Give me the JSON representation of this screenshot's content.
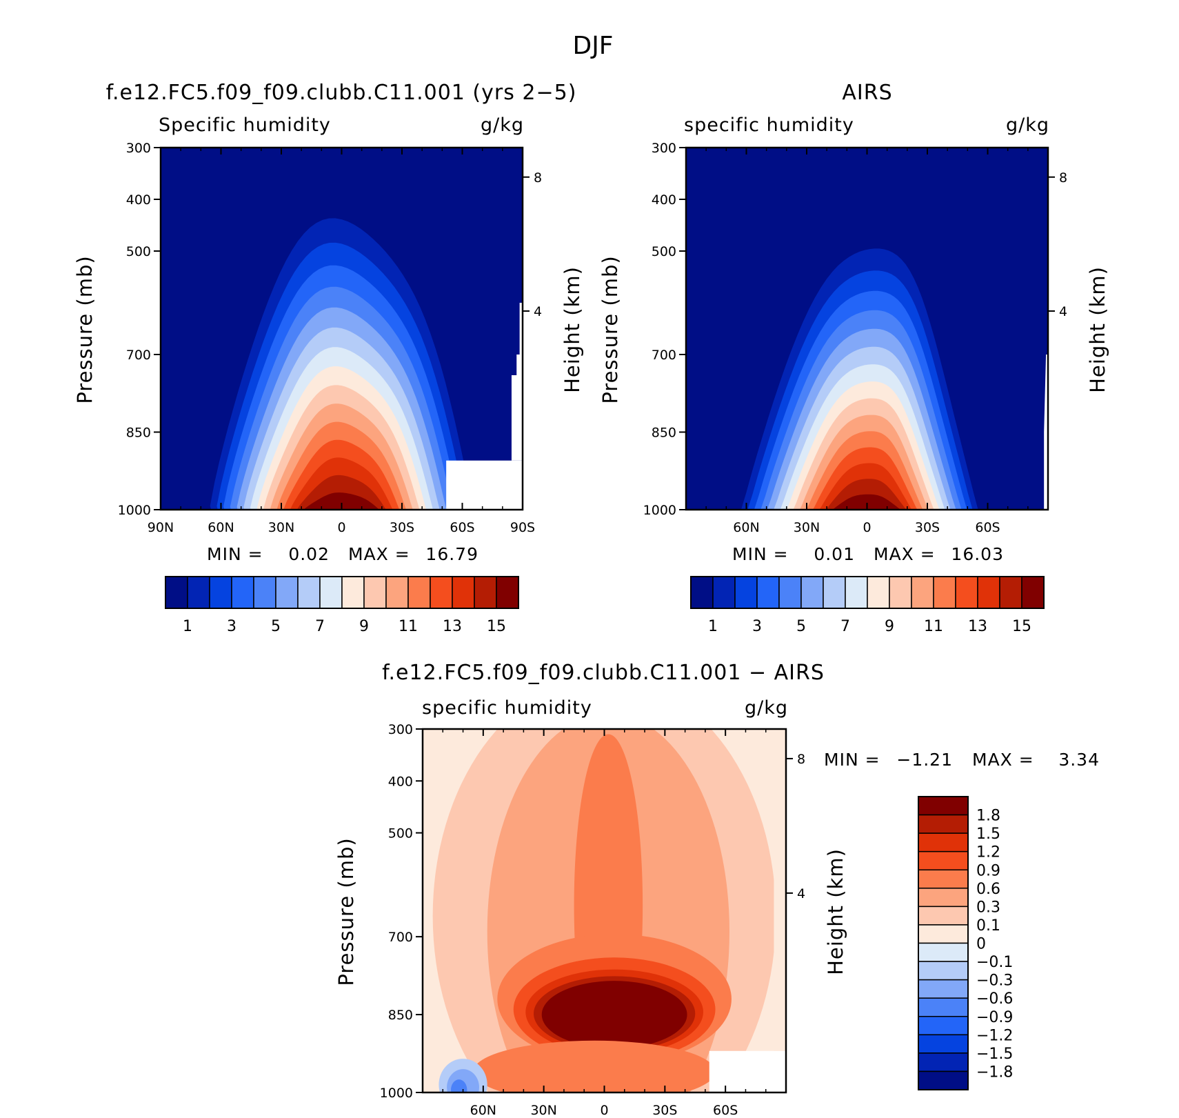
{
  "figure": {
    "title": "DJF"
  },
  "chart_data": [
    {
      "type": "heatmap",
      "title": "f.e12.FC5.f09_f09.clubb.C11.001 (yrs 2-5)",
      "subtitle_left": "Specific humidity",
      "subtitle_right": "g/kg",
      "xlabel": "",
      "ylabel": "Pressure (mb)",
      "y2label": "Height (km)",
      "x_ticks": [
        "90N",
        "60N",
        "30N",
        "0",
        "30S",
        "60S",
        "90S"
      ],
      "y_ticks": [
        "300",
        "400",
        "500",
        "700",
        "850",
        "1000"
      ],
      "y2_ticks": [
        "8",
        "4"
      ],
      "ylim": [
        300,
        1000
      ],
      "xlim": [
        -90,
        90
      ],
      "stats": {
        "min_label": "MIN =",
        "min": "0.02",
        "max_label": "MAX =",
        "max": "16.79"
      },
      "colorbar": {
        "orientation": "horizontal",
        "labels": [
          "1",
          "3",
          "5",
          "7",
          "9",
          "11",
          "13",
          "15"
        ],
        "colors": [
          "#000e86",
          "#0224b4",
          "#0543e0",
          "#2365f8",
          "#4b82f8",
          "#82a8f8",
          "#b4ccf8",
          "#dceaf8",
          "#fdeadc",
          "#fdc8b0",
          "#fca47e",
          "#fb7c4c",
          "#f44e1e",
          "#e03208",
          "#b41d04",
          "#800000"
        ]
      },
      "peak": {
        "lat": 0,
        "pressure": 1000,
        "half_width": 44,
        "top": 380,
        "maxval": 16.79
      }
    },
    {
      "type": "heatmap",
      "title": "AIRS",
      "subtitle_left": "specific humidity",
      "subtitle_right": "g/kg",
      "xlabel": "",
      "ylabel": "Pressure (mb)",
      "y2label": "Height (km)",
      "x_ticks": [
        "60N",
        "30N",
        "0",
        "30S",
        "60S"
      ],
      "y_ticks": [
        "300",
        "400",
        "500",
        "700",
        "850",
        "1000"
      ],
      "y2_ticks": [
        "8",
        "4"
      ],
      "ylim": [
        300,
        1000
      ],
      "xlim": [
        -90,
        90
      ],
      "stats": {
        "min_label": "MIN =",
        "min": "0.01",
        "max_label": "MAX =",
        "max": "16.03"
      },
      "colorbar": {
        "orientation": "horizontal",
        "labels": [
          "1",
          "3",
          "5",
          "7",
          "9",
          "11",
          "13",
          "15"
        ],
        "colors": [
          "#000e86",
          "#0224b4",
          "#0543e0",
          "#2365f8",
          "#4b82f8",
          "#82a8f8",
          "#b4ccf8",
          "#dceaf8",
          "#fdeadc",
          "#fdc8b0",
          "#fca47e",
          "#fb7c4c",
          "#f44e1e",
          "#e03208",
          "#b41d04",
          "#800000"
        ]
      },
      "peak": {
        "lat": 0,
        "pressure": 1000,
        "half_width": 40,
        "top": 430,
        "maxval": 16.03
      }
    },
    {
      "type": "heatmap",
      "title": "f.e12.FC5.f09_f09.clubb.C11.001 - AIRS",
      "subtitle_left": "specific humidity",
      "subtitle_right": "g/kg",
      "xlabel": "",
      "ylabel": "Pressure (mb)",
      "y2label": "Height (km)",
      "x_ticks": [
        "60N",
        "30N",
        "0",
        "30S",
        "60S"
      ],
      "y_ticks": [
        "300",
        "400",
        "500",
        "700",
        "850",
        "1000"
      ],
      "y2_ticks": [
        "8",
        "4"
      ],
      "ylim": [
        300,
        1000
      ],
      "xlim": [
        -90,
        90
      ],
      "stats": {
        "min_label": "MIN =",
        "min": "-1.21",
        "max_label": "MAX =",
        "max": "3.34"
      },
      "colorbar": {
        "orientation": "vertical",
        "labels": [
          "1.8",
          "1.5",
          "1.2",
          "0.9",
          "0.6",
          "0.3",
          "0.1",
          "0",
          "-0.1",
          "-0.3",
          "-0.6",
          "-0.9",
          "-1.2",
          "-1.5",
          "-1.8"
        ],
        "colors": [
          "#800000",
          "#b41d04",
          "#e03208",
          "#f44e1e",
          "#fb7c4c",
          "#fca47e",
          "#fdc8b0",
          "#fdeadc",
          "#dceaf8",
          "#b4ccf8",
          "#82a8f8",
          "#4b82f8",
          "#2365f8",
          "#0543e0",
          "#0224b4",
          "#000e86"
        ]
      }
    }
  ]
}
